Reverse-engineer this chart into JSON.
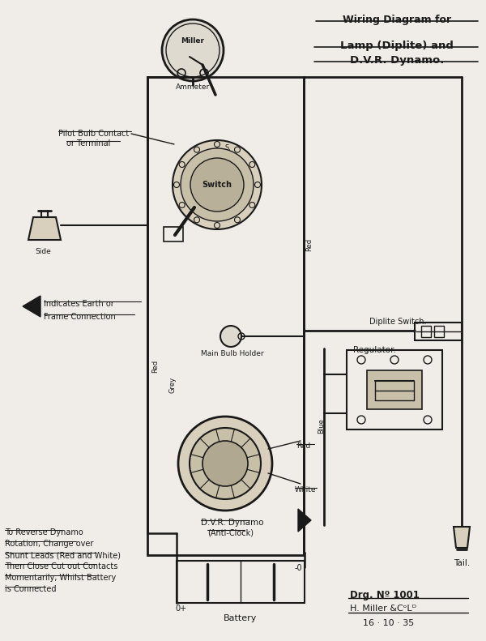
{
  "bg_color": "#f0ede8",
  "line_color": "#1a1a1a",
  "title1": "Wiring Diagram for",
  "title2": "Lamp (Diplite) and",
  "title3": "D.V.R. Dynamo.",
  "label_ammeter": "Ammeter",
  "label_miller": "Miller",
  "label_switch": "Switch",
  "label_side": "Side",
  "label_pilot": "Pilot Bulb Contact",
  "label_or_terminal": "or Terminal",
  "label_earth": "Indicates Earth or",
  "label_frame": "Frame Connection",
  "label_main_bulb": "Main Bulb Holder",
  "label_diplite_sw": "Diplite Switch.",
  "label_regulator": "Regulator.",
  "label_red": "Red",
  "label_grey": "Grey",
  "label_blue": "Blue",
  "label_white": "White",
  "label_dynamo": "D.V.R. Dynamo",
  "label_anticlock": "(Anti-Clock)",
  "label_battery": "Battery",
  "label_tail": "Tail.",
  "label_note1": "To Reverse Dynamo",
  "label_note2": "Rotation, Change over",
  "label_note3": "Shunt Leads (Red and White)",
  "label_note4": "Then Close Cut out Contacts",
  "label_note5": "Momentarily, Whilst Battery",
  "label_note6": "is Connected",
  "label_drg": "Drg. Nº 1001",
  "label_miller2": "H. Miller &CᵒLᴰ",
  "label_date": "16 · 10 · 35"
}
